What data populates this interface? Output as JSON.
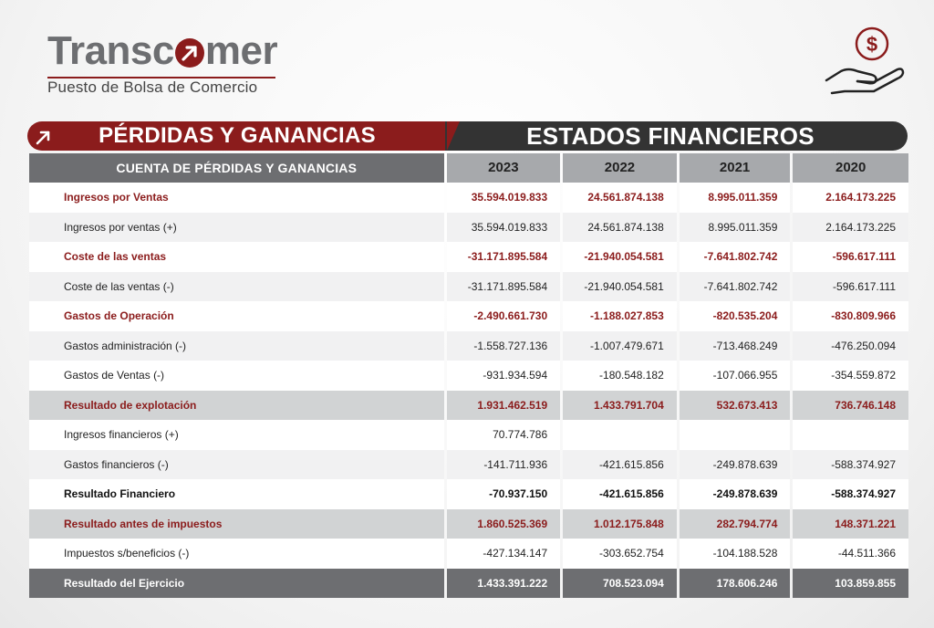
{
  "brand": {
    "name_part1": "Transc",
    "name_part2": "mer",
    "subtitle": "Puesto de Bolsa de Comercio"
  },
  "icons": {
    "logo_o": "arrow-up-right-icon",
    "banner": "arrow-up-right-icon",
    "top_right": "money-hand-icon"
  },
  "colors": {
    "brand_red": "#8b1c1c",
    "dark": "#333333",
    "header_gray": "#6d6e71",
    "year_gray": "#a7a9ac"
  },
  "banner": {
    "left_title": "PÉRDIDAS Y GANANCIAS",
    "right_title": "ESTADOS FINANCIEROS"
  },
  "table": {
    "header_label": "CUENTA DE PÉRDIDAS Y GANANCIAS",
    "years": [
      "2023",
      "2022",
      "2021",
      "2020"
    ],
    "rows": [
      {
        "label": "Ingresos por Ventas",
        "values": [
          "35.594.019.833",
          "24.561.874.138",
          "8.995.011.359",
          "2.164.173.225"
        ]
      },
      {
        "label": "Ingresos por ventas (+)",
        "values": [
          "35.594.019.833",
          "24.561.874.138",
          "8.995.011.359",
          "2.164.173.225"
        ]
      },
      {
        "label": "Coste de las ventas",
        "values": [
          "-31.171.895.584",
          "-21.940.054.581",
          "-7.641.802.742",
          "-596.617.111"
        ]
      },
      {
        "label": "Coste de las ventas (-)",
        "values": [
          "-31.171.895.584",
          "-21.940.054.581",
          "-7.641.802.742",
          "-596.617.111"
        ]
      },
      {
        "label": "Gastos de Operación",
        "values": [
          "-2.490.661.730",
          "-1.188.027.853",
          "-820.535.204",
          "-830.809.966"
        ]
      },
      {
        "label": "Gastos administración (-)",
        "values": [
          "-1.558.727.136",
          "-1.007.479.671",
          "-713.468.249",
          "-476.250.094"
        ]
      },
      {
        "label": "Gastos de Ventas (-)",
        "values": [
          "-931.934.594",
          "-180.548.182",
          "-107.066.955",
          "-354.559.872"
        ]
      },
      {
        "label": "Resultado de explotación",
        "values": [
          "1.931.462.519",
          "1.433.791.704",
          "532.673.413",
          "736.746.148"
        ]
      },
      {
        "label": "Ingresos financieros (+)",
        "values": [
          "70.774.786",
          "",
          "",
          ""
        ]
      },
      {
        "label": "Gastos financieros (-)",
        "values": [
          "-141.711.936",
          "-421.615.856",
          "-249.878.639",
          "-588.374.927"
        ]
      },
      {
        "label": "Resultado Financiero",
        "values": [
          "-70.937.150",
          "-421.615.856",
          "-249.878.639",
          "-588.374.927"
        ]
      },
      {
        "label": "Resultado antes de impuestos",
        "values": [
          "1.860.525.369",
          "1.012.175.848",
          "282.794.774",
          "148.371.221"
        ]
      },
      {
        "label": "Impuestos s/beneficios (-)",
        "values": [
          "-427.134.147",
          "-303.652.754",
          "-104.188.528",
          "-44.511.366"
        ]
      },
      {
        "label": "Resultado del Ejercicio",
        "values": [
          "1.433.391.222",
          "708.523.094",
          "178.606.246",
          "103.859.855"
        ]
      }
    ]
  }
}
